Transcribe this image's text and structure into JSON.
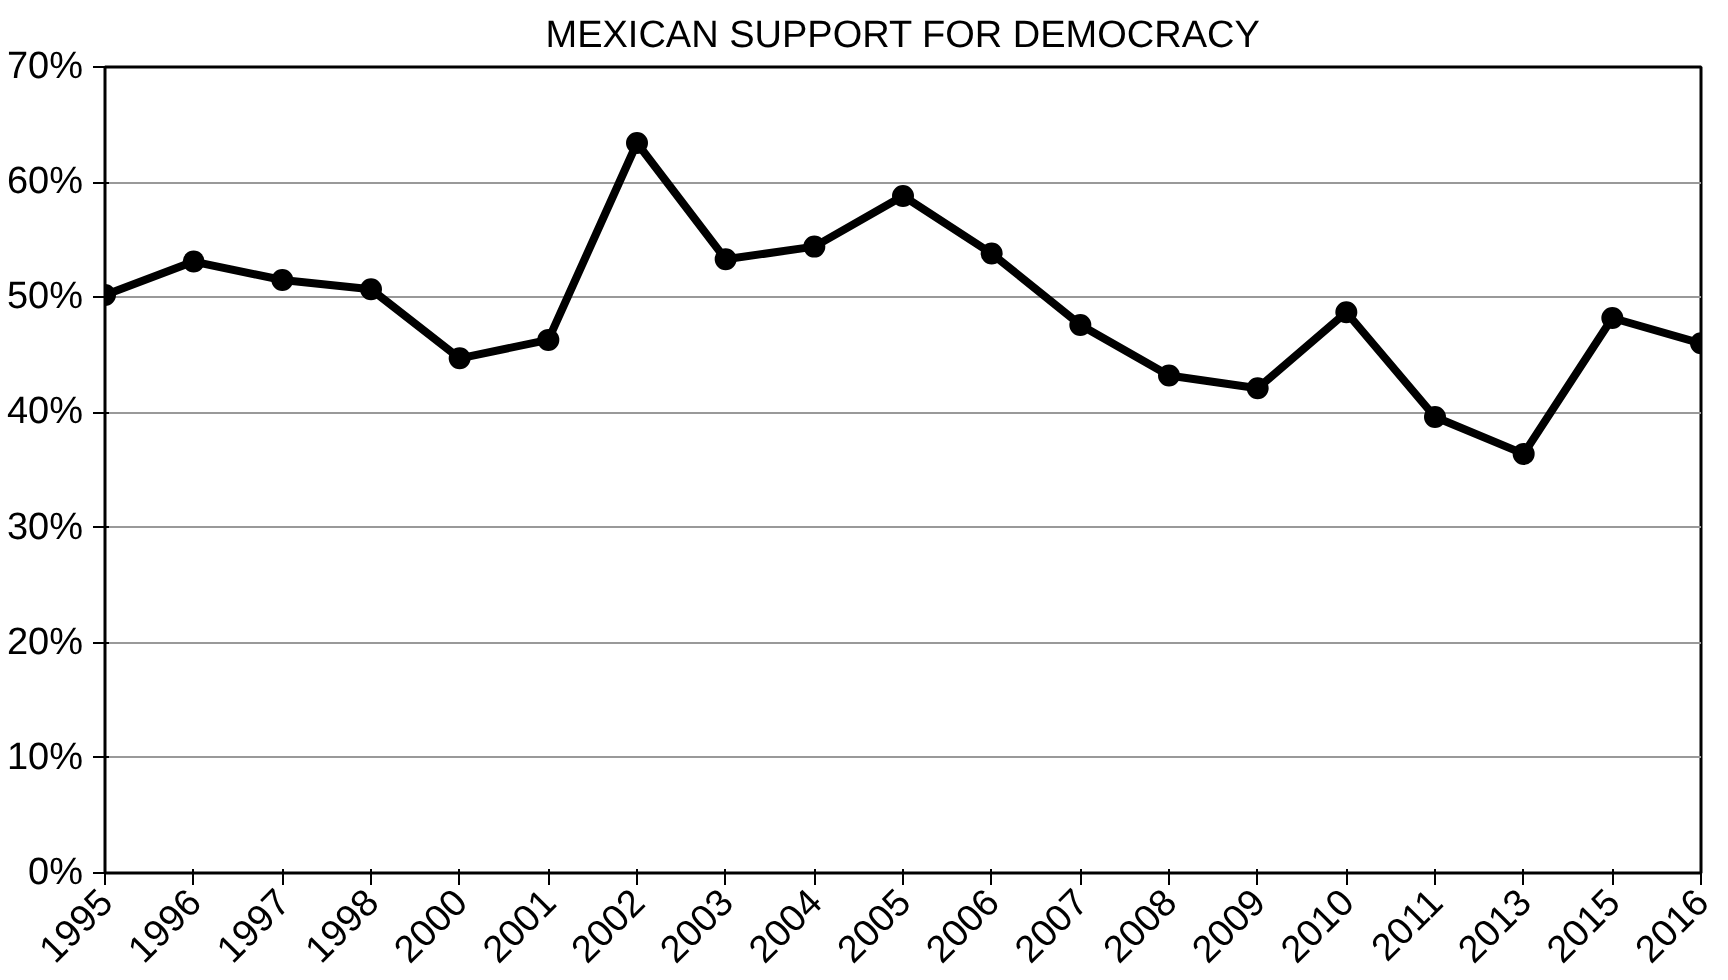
{
  "chart_data": {
    "type": "line",
    "title": "MEXICAN SUPPORT FOR DEMOCRACY",
    "categories": [
      "1995",
      "1996",
      "1997",
      "1998",
      "2000",
      "2001",
      "2002",
      "2003",
      "2004",
      "2005",
      "2006",
      "2007",
      "2008",
      "2009",
      "2010",
      "2011",
      "2013",
      "2015",
      "2016"
    ],
    "series": [
      {
        "color": "#000000",
        "values": [
          50.2,
          53.1,
          51.5,
          50.7,
          44.7,
          46.3,
          63.4,
          53.3,
          54.4,
          58.8,
          53.8,
          47.6,
          43.2,
          42.1,
          48.7,
          39.6,
          36.4,
          48.2,
          46.0
        ]
      }
    ],
    "ylim": [
      0,
      70
    ],
    "yticks": [
      {
        "value": 0,
        "label": "0%"
      },
      {
        "value": 10,
        "label": "10%"
      },
      {
        "value": 20,
        "label": "20%"
      },
      {
        "value": 30,
        "label": "30%"
      },
      {
        "value": 40,
        "label": "40%"
      },
      {
        "value": 50,
        "label": "50%"
      },
      {
        "value": 60,
        "label": "60%"
      },
      {
        "value": 70,
        "label": "70%"
      }
    ],
    "grid": "y",
    "marker": "circle",
    "line_style": "solid"
  }
}
